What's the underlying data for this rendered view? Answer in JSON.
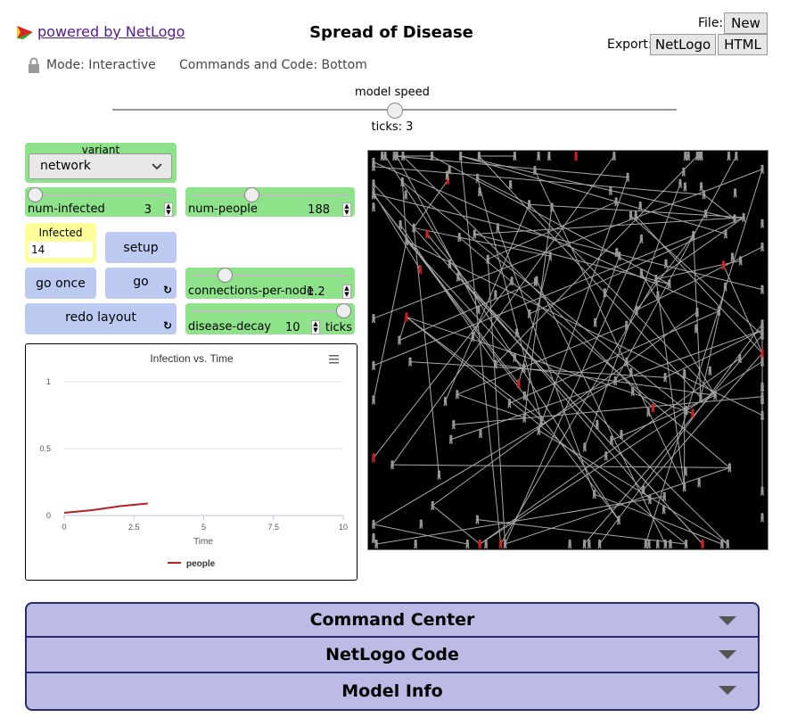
{
  "header": {
    "powered_by": "powered by NetLogo",
    "title": "Spread of Disease",
    "file_label": "File:",
    "new_label": "New",
    "export_label": "Export:",
    "export_netlogo": "NetLogo",
    "export_html": "HTML",
    "mode": "Mode: Interactive",
    "code_position": "Commands and Code: Bottom"
  },
  "speed": {
    "label": "model speed",
    "ticks": "ticks: 3",
    "value": 0.5
  },
  "widgets": {
    "variant": {
      "label": "variant",
      "value": "network"
    },
    "num_infected": {
      "label": "num-infected",
      "value": "3",
      "fraction": 0.0
    },
    "num_people": {
      "label": "num-people",
      "value": "188",
      "fraction": 0.38
    },
    "infected_monitor": {
      "label": "Infected",
      "value": "14"
    },
    "setup": "setup",
    "go_once": "go once",
    "go": "go",
    "connections": {
      "label": "connections-per-node",
      "value": "1.2",
      "fraction": 0.2
    },
    "redo_layout": "redo layout",
    "disease_decay": {
      "label": "disease-decay",
      "value": "10",
      "unit": "ticks",
      "fraction": 1.0
    }
  },
  "plot": {
    "menu_icon": "hamburger-menu-icon"
  },
  "chart_data": {
    "type": "line",
    "title": "Infection vs. Time",
    "xlabel": "Time",
    "ylabel": "",
    "xlim": [
      0,
      10
    ],
    "ylim": [
      0,
      1
    ],
    "xticks": [
      "0",
      "2.5",
      "5",
      "7.5",
      "10"
    ],
    "yticks": [
      "0",
      "0.5",
      "1"
    ],
    "legend_position": "bottom",
    "series": [
      {
        "name": "people",
        "color": "#b22222",
        "x": [
          0,
          1,
          2,
          3
        ],
        "y": [
          0.02,
          0.04,
          0.07,
          0.09
        ]
      }
    ]
  },
  "sections": {
    "command_center": "Command Center",
    "netlogo_code": "NetLogo Code",
    "model_info": "Model Info"
  },
  "colors": {
    "widget_green": "#8ee38a",
    "button_blue": "#bccaf2",
    "section_bar": "#bbbbe6",
    "infected_red": "#d42020",
    "healthy_gray": "#9a9a9a"
  }
}
